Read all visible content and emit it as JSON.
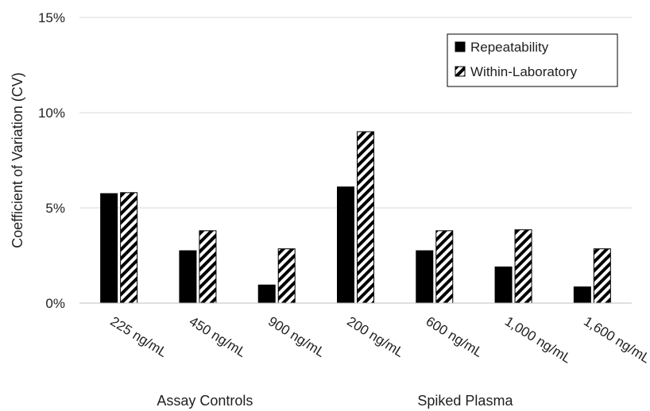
{
  "chart_data": {
    "type": "bar",
    "ylabel": "Coefficient of Variation (CV)",
    "xlabel": "",
    "ylim": [
      0,
      15
    ],
    "y_ticks": [
      0,
      5,
      10,
      15
    ],
    "y_tick_labels": [
      "0%",
      "5%",
      "10%",
      "15%"
    ],
    "grid": "horizontal",
    "legend_position": "top-right",
    "categories": [
      "225 ng/mL",
      "450 ng/mL",
      "900 ng/mL",
      "200 ng/mL",
      "600 ng/mL",
      "1,000 ng/mL",
      "1,600 ng/mL"
    ],
    "groups": [
      {
        "label": "Assay Controls",
        "categories": [
          "225 ng/mL",
          "450 ng/mL",
          "900 ng/mL"
        ]
      },
      {
        "label": "Spiked Plasma",
        "categories": [
          "200 ng/mL",
          "600 ng/mL",
          "1,000 ng/mL",
          "1,600 ng/mL"
        ]
      }
    ],
    "series": [
      {
        "name": "Repeatability",
        "style": "solid",
        "color": "#000000",
        "values": [
          5.75,
          2.75,
          0.95,
          6.1,
          2.75,
          1.9,
          0.85
        ]
      },
      {
        "name": "Within-Laboratory",
        "style": "hatched",
        "color": "#000000",
        "values": [
          5.8,
          3.8,
          2.85,
          9.0,
          3.8,
          3.85,
          2.85
        ]
      }
    ]
  }
}
